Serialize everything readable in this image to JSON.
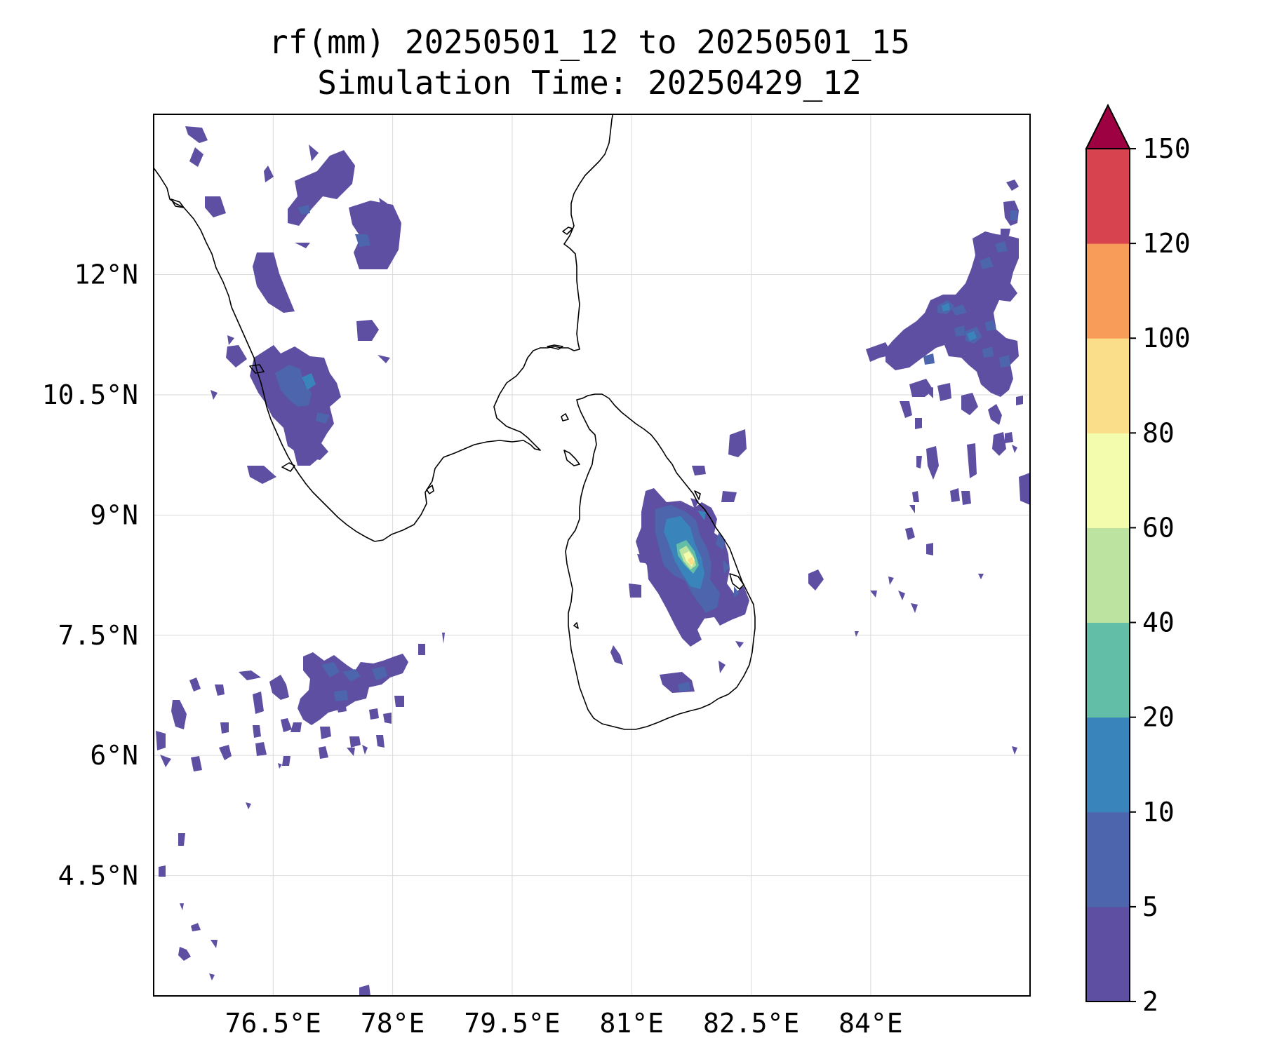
{
  "title": {
    "line1": "rf(mm) 20250501_12 to 20250501_15",
    "line2": "Simulation Time: 20250429_12"
  },
  "map": {
    "lon_range": [
      75.0,
      86.0
    ],
    "lat_range": [
      3.0,
      14.0
    ],
    "x_ticks": [
      {
        "value": 76.5,
        "label": "76.5°E"
      },
      {
        "value": 78.0,
        "label": "78°E"
      },
      {
        "value": 79.5,
        "label": "79.5°E"
      },
      {
        "value": 81.0,
        "label": "81°E"
      },
      {
        "value": 82.5,
        "label": "82.5°E"
      },
      {
        "value": 84.0,
        "label": "84°E"
      }
    ],
    "y_ticks": [
      {
        "value": 12.0,
        "label": "12°N"
      },
      {
        "value": 10.5,
        "label": "10.5°N"
      },
      {
        "value": 9.0,
        "label": "9°N"
      },
      {
        "value": 7.5,
        "label": "7.5°N"
      },
      {
        "value": 6.0,
        "label": "6°N"
      },
      {
        "value": 4.5,
        "label": "4.5°N"
      }
    ],
    "grid": true
  },
  "colorbar": {
    "levels": [
      2,
      5,
      10,
      20,
      40,
      60,
      80,
      100,
      120,
      150
    ],
    "labels": [
      "2",
      "5",
      "10",
      "20",
      "40",
      "60",
      "80",
      "100",
      "120",
      "150"
    ],
    "colors": [
      "#5e4fa2",
      "#4c65ad",
      "#3a84bc",
      "#62bea6",
      "#bde3a0",
      "#f3fbad",
      "#fbde89",
      "#f89d59",
      "#d7434e"
    ],
    "extend_color": "#9e0142",
    "extend": "max"
  }
}
